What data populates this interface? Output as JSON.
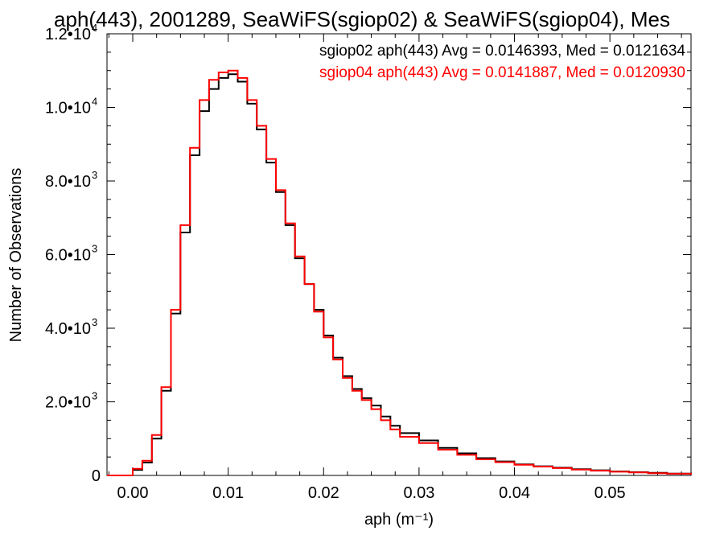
{
  "chart_data": {
    "type": "line",
    "title": "aph(443), 2001289, SeaWiFS(sgiop02) & SeaWiFS(sgiop04), Mes",
    "xlabel": "aph (m⁻¹)",
    "ylabel": "Number of Observations",
    "xlim": [
      -0.0027,
      0.0585
    ],
    "ylim": [
      0,
      12000
    ],
    "x_ticks": [
      0.0,
      0.01,
      0.02,
      0.03,
      0.04,
      0.05
    ],
    "x_tick_labels": [
      "0.00",
      "0.01",
      "0.02",
      "0.03",
      "0.04",
      "0.05"
    ],
    "y_ticks": [
      0,
      2000,
      4000,
      6000,
      8000,
      10000,
      12000
    ],
    "y_tick_mantissas": [
      "0",
      "2.0•10",
      "4.0•10",
      "6.0•10",
      "8.0•10",
      "1.0•10",
      "1.2•10"
    ],
    "y_tick_exponents": [
      "",
      "3",
      "3",
      "3",
      "3",
      "4",
      "4"
    ],
    "annotations": [
      {
        "text": "sgiop02 aph(443) Avg = 0.0146393, Med = 0.0121634",
        "color": "#000000"
      },
      {
        "text": "sgiop04 aph(443) Avg = 0.0141887, Med = 0.0120930",
        "color": "#ff0000"
      }
    ],
    "series": [
      {
        "color": "#000000",
        "style": "step",
        "x": [
          -0.0027,
          -0.002,
          0.0,
          0.001,
          0.002,
          0.003,
          0.004,
          0.005,
          0.006,
          0.007,
          0.008,
          0.009,
          0.01,
          0.011,
          0.012,
          0.013,
          0.014,
          0.015,
          0.016,
          0.017,
          0.018,
          0.019,
          0.02,
          0.021,
          0.022,
          0.023,
          0.024,
          0.025,
          0.026,
          0.027,
          0.028,
          0.03,
          0.032,
          0.034,
          0.036,
          0.038,
          0.04,
          0.042,
          0.044,
          0.046,
          0.048,
          0.05,
          0.052,
          0.054,
          0.056,
          0.0585
        ],
        "y": [
          0,
          0,
          150,
          350,
          1000,
          2300,
          4400,
          6600,
          8700,
          9900,
          10500,
          10800,
          10900,
          10700,
          10100,
          9400,
          8500,
          7700,
          6800,
          5900,
          5200,
          4500,
          3800,
          3200,
          2700,
          2350,
          2100,
          1900,
          1600,
          1350,
          1150,
          950,
          750,
          600,
          470,
          380,
          300,
          250,
          210,
          170,
          140,
          110,
          90,
          70,
          50,
          20
        ]
      },
      {
        "color": "#ff0000",
        "style": "step",
        "x": [
          -0.0027,
          -0.002,
          0.0,
          0.001,
          0.002,
          0.003,
          0.004,
          0.005,
          0.006,
          0.007,
          0.008,
          0.009,
          0.01,
          0.011,
          0.012,
          0.013,
          0.014,
          0.015,
          0.016,
          0.017,
          0.018,
          0.019,
          0.02,
          0.021,
          0.022,
          0.023,
          0.024,
          0.025,
          0.026,
          0.027,
          0.028,
          0.03,
          0.032,
          0.034,
          0.036,
          0.038,
          0.04,
          0.042,
          0.044,
          0.046,
          0.048,
          0.05,
          0.052,
          0.054,
          0.056,
          0.0585
        ],
        "y": [
          0,
          0,
          180,
          400,
          1100,
          2400,
          4500,
          6800,
          8900,
          10200,
          10750,
          10950,
          11000,
          10800,
          10200,
          9500,
          8600,
          7750,
          6850,
          5950,
          5200,
          4450,
          3750,
          3150,
          2650,
          2300,
          2050,
          1800,
          1500,
          1250,
          1050,
          880,
          700,
          560,
          440,
          360,
          290,
          240,
          200,
          160,
          130,
          100,
          80,
          60,
          45,
          20
        ]
      }
    ]
  }
}
